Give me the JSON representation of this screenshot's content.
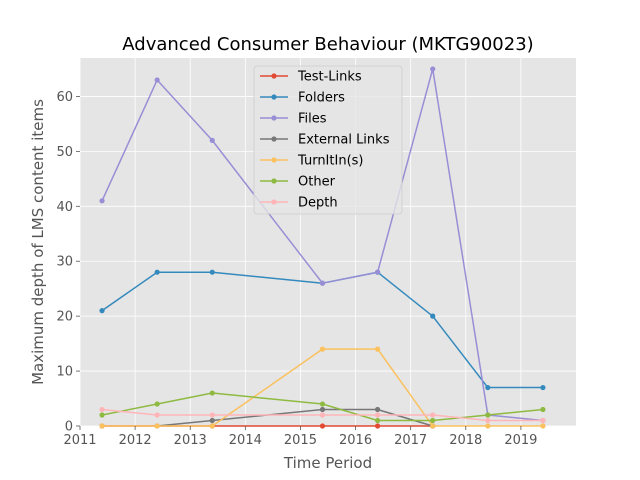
{
  "chart_data": {
    "type": "line",
    "title": "Advanced Consumer Behaviour (MKTG90023)",
    "xlabel": "Time Period",
    "ylabel": "Maximum depth of LMS content items",
    "xlim": [
      2011,
      2020
    ],
    "ylim": [
      0,
      67
    ],
    "xticks": [
      2011,
      2012,
      2013,
      2014,
      2015,
      2016,
      2017,
      2018,
      2019
    ],
    "yticks": [
      0,
      10,
      20,
      30,
      40,
      50,
      60
    ],
    "x": [
      2011.4,
      2012.4,
      2013.4,
      2015.4,
      2016.4,
      2017.4,
      2018.4,
      2019.4
    ],
    "grid": true,
    "legend_position": "top-center",
    "series": [
      {
        "name": "Test-Links",
        "color": "#e24a33",
        "values": [
          0,
          null,
          0,
          0,
          0,
          0,
          null,
          null
        ]
      },
      {
        "name": "Folders",
        "color": "#348abd",
        "values": [
          21,
          28,
          28,
          26,
          28,
          20,
          7,
          7
        ]
      },
      {
        "name": "Files",
        "color": "#988ed5",
        "values": [
          41,
          63,
          52,
          26,
          28,
          65,
          2,
          1
        ]
      },
      {
        "name": "External Links",
        "color": "#777777",
        "values": [
          null,
          0,
          1,
          3,
          3,
          0,
          null,
          null
        ]
      },
      {
        "name": "TurnItIn(s)",
        "color": "#fbc15e",
        "values": [
          0,
          0,
          0,
          14,
          14,
          0,
          0,
          0
        ]
      },
      {
        "name": "Other",
        "color": "#8eba42",
        "values": [
          2,
          4,
          6,
          4,
          1,
          1,
          2,
          3
        ]
      },
      {
        "name": "Depth",
        "color": "#ffb5b8",
        "values": [
          3,
          2,
          2,
          2,
          2,
          2,
          1,
          1
        ]
      }
    ]
  }
}
